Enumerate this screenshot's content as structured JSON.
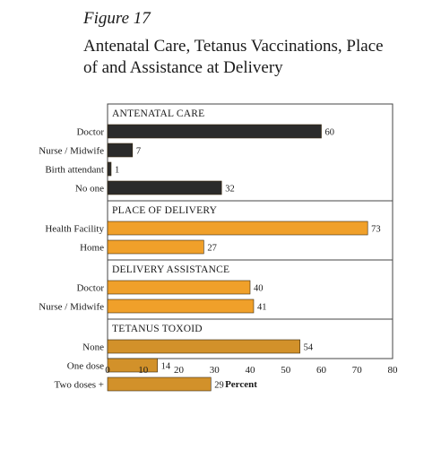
{
  "figure_label": "Figure 17",
  "title_lines": [
    "Antenatal Care, Tetanus Vaccinations, Place",
    "of and Assistance at Delivery"
  ],
  "colors": {
    "dark": "#2b2b2b",
    "orange": "#f0a02a",
    "brown": "#d2912a",
    "frame": "#444444"
  },
  "chart_data": {
    "type": "bar",
    "orientation": "horizontal",
    "xlabel": "Percent",
    "xlim": [
      0,
      80
    ],
    "xticks": [
      "0",
      "10",
      "20",
      "30",
      "40",
      "50",
      "60",
      "70",
      "80"
    ],
    "groups": [
      {
        "name": "ANTENATAL CARE",
        "color": "dark",
        "categories": [
          "Doctor",
          "Nurse / Midwife",
          "Birth attendant",
          "No one"
        ],
        "values": [
          60,
          7,
          1,
          32
        ]
      },
      {
        "name": "PLACE OF DELIVERY",
        "color": "orange",
        "categories": [
          "Health Facility",
          "Home"
        ],
        "values": [
          73,
          27
        ]
      },
      {
        "name": "DELIVERY ASSISTANCE",
        "color": "orange",
        "categories": [
          "Doctor",
          "Nurse / Midwife"
        ],
        "values": [
          40,
          41
        ]
      },
      {
        "name": "TETANUS TOXOID",
        "color": "brown",
        "categories": [
          "None",
          "One dose",
          "Two doses +"
        ],
        "values": [
          54,
          14,
          29
        ]
      }
    ]
  }
}
